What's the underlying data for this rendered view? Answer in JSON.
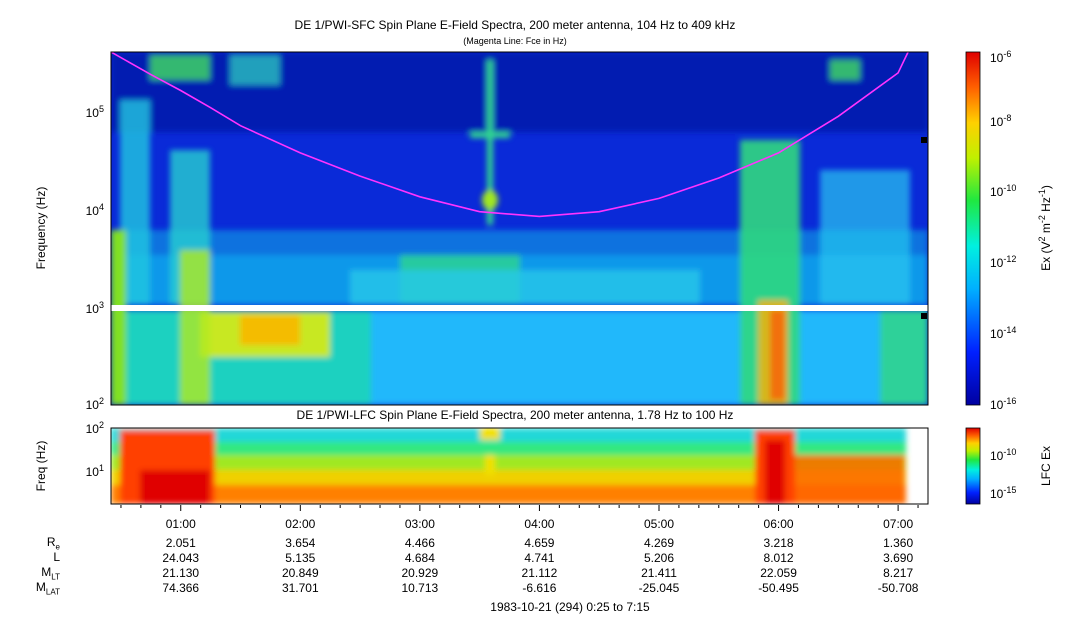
{
  "sfc_panel": {
    "title": "DE 1/PWI-SFC  Spin Plane E-Field Spectra, 200 meter antenna, 104 Hz to 409 kHz",
    "subtitle": "(Magenta Line: Fce in Hz)",
    "ylabel": "Frequency (Hz)",
    "y_ticks": [
      "10^5",
      "10^4",
      "10^3",
      "10^2"
    ],
    "colorbar_label": "Ex (V^2 m^-2 Hz^-1)",
    "colorbar_ticks": [
      "10^-6",
      "10^-8",
      "10^-10",
      "10^-12",
      "10^-14",
      "10^-16"
    ]
  },
  "lfc_panel": {
    "title": "DE 1/PWI-LFC  Spin Plane E-Field Spectra, 200 meter antenna, 1.78 Hz to 100 Hz",
    "ylabel": "Freq (Hz)",
    "y_ticks": [
      "10^2",
      "10^1"
    ],
    "colorbar_label": "LFC Ex",
    "colorbar_ticks": [
      "10^-10",
      "10^-15"
    ]
  },
  "time_axis": {
    "labels": [
      "01:00",
      "02:00",
      "03:00",
      "04:00",
      "05:00",
      "06:00",
      "07:00"
    ],
    "caption": "1983-10-21 (294) 0:25 to 7:15"
  },
  "ephemeris": {
    "rows": [
      {
        "label": "R",
        "sub": "e",
        "values": [
          "2.051",
          "3.654",
          "4.466",
          "4.659",
          "4.269",
          "3.218",
          "1.360"
        ]
      },
      {
        "label": "L",
        "sub": "",
        "values": [
          "24.043",
          "5.135",
          "4.684",
          "4.741",
          "5.206",
          "8.012",
          "3.690"
        ]
      },
      {
        "label": "M",
        "sub": "LT",
        "values": [
          "21.130",
          "20.849",
          "20.929",
          "21.112",
          "21.411",
          "22.059",
          "8.217"
        ]
      },
      {
        "label": "M",
        "sub": "LAT",
        "values": [
          "74.366",
          "31.701",
          "10.713",
          "-6.616",
          "-25.045",
          "-50.495",
          "-50.708"
        ]
      }
    ]
  },
  "colors": {
    "fce_line": "#ff33ff",
    "background": "#0a2ad8"
  },
  "chart_data": [
    {
      "type": "heatmap",
      "title": "DE 1/PWI-SFC  Spin Plane E-Field Spectra, 200 meter antenna, 104 Hz to 409 kHz",
      "ylabel": "Frequency (Hz)",
      "yscale": "log",
      "ylim": [
        100,
        409000
      ],
      "x_ticks": [
        "01:00",
        "02:00",
        "03:00",
        "04:00",
        "05:00",
        "06:00",
        "07:00"
      ],
      "colorscale": "log",
      "zlim": [
        1e-16,
        1e-06
      ],
      "series": [
        {
          "name": "Fce in Hz",
          "x": [
            "00:25",
            "00:45",
            "01:00",
            "01:15",
            "01:30",
            "02:00",
            "02:30",
            "03:00",
            "03:30",
            "04:00",
            "04:30",
            "05:00",
            "05:30",
            "06:00",
            "06:30",
            "07:00",
            "07:05"
          ],
          "values": [
            409000,
            240000,
            165000,
            110000,
            72000,
            38000,
            22000,
            13500,
            9500,
            8500,
            9500,
            13000,
            21000,
            38000,
            90000,
            250000,
            409000
          ]
        }
      ]
    },
    {
      "type": "heatmap",
      "title": "DE 1/PWI-LFC  Spin Plane E-Field Spectra, 200 meter antenna, 1.78 Hz to 100 Hz",
      "ylabel": "Freq (Hz)",
      "yscale": "log",
      "ylim": [
        1.78,
        100
      ],
      "x_ticks": [
        "01:00",
        "02:00",
        "03:00",
        "04:00",
        "05:00",
        "06:00",
        "07:00"
      ],
      "colorscale": "log"
    }
  ]
}
